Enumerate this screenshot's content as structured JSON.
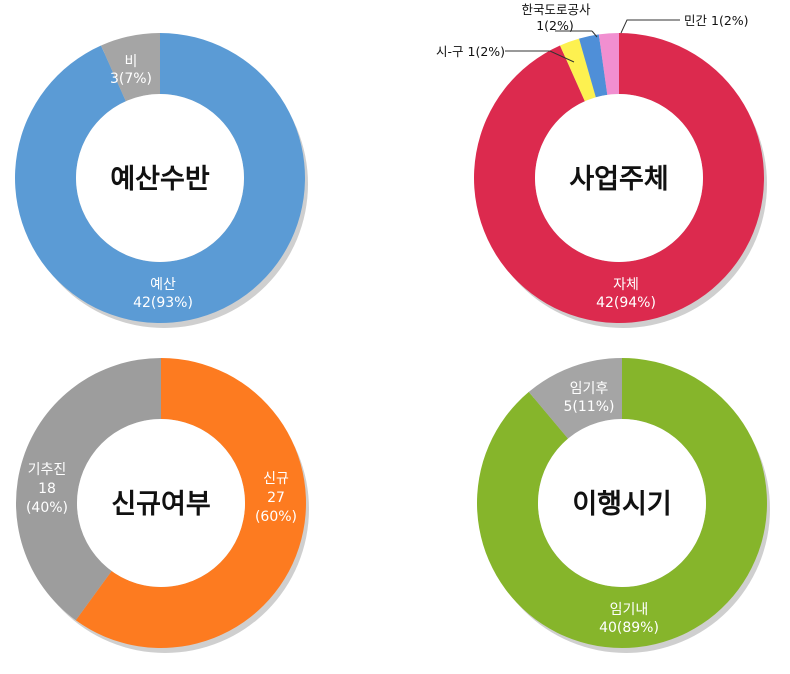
{
  "chart_data": [
    {
      "type": "pie",
      "center_label": "예산수반",
      "segments": [
        {
          "label": "예산",
          "value": 42,
          "percent": 93,
          "display": "42(93%)",
          "color": "#5b9bd5"
        },
        {
          "label": "비",
          "value": 3,
          "percent": 7,
          "display": "3(7%)",
          "color": "#a5a5a5"
        }
      ]
    },
    {
      "type": "pie",
      "center_label": "사업주체",
      "segments": [
        {
          "label": "자체",
          "value": 42,
          "percent": 94,
          "display": "42(94%)",
          "color": "#dc2a4e"
        },
        {
          "label": "시-구",
          "value": 1,
          "percent": 2,
          "display": "1(2%)",
          "color": "#fdf150"
        },
        {
          "label": "한국도로공사",
          "value": 1,
          "percent": 2,
          "display": "1(2%)",
          "color": "#4f8fd8"
        },
        {
          "label": "민간",
          "value": 1,
          "percent": 2,
          "display": "1(2%)",
          "color": "#f18fd0"
        }
      ]
    },
    {
      "type": "pie",
      "center_label": "신규여부",
      "segments": [
        {
          "label": "신규",
          "value": 27,
          "percent": 60,
          "display_value": "27",
          "display_percent": "(60%)",
          "color": "#fd7b20"
        },
        {
          "label": "기추진",
          "value": 18,
          "percent": 40,
          "display_value": "18",
          "display_percent": "(40%)",
          "color": "#9d9d9d"
        }
      ]
    },
    {
      "type": "pie",
      "center_label": "이행시기",
      "segments": [
        {
          "label": "임기내",
          "value": 40,
          "percent": 89,
          "display": "40(89%)",
          "color": "#86b52b"
        },
        {
          "label": "임기후",
          "value": 5,
          "percent": 11,
          "display": "5(11%)",
          "color": "#a5a5a5"
        }
      ]
    }
  ]
}
